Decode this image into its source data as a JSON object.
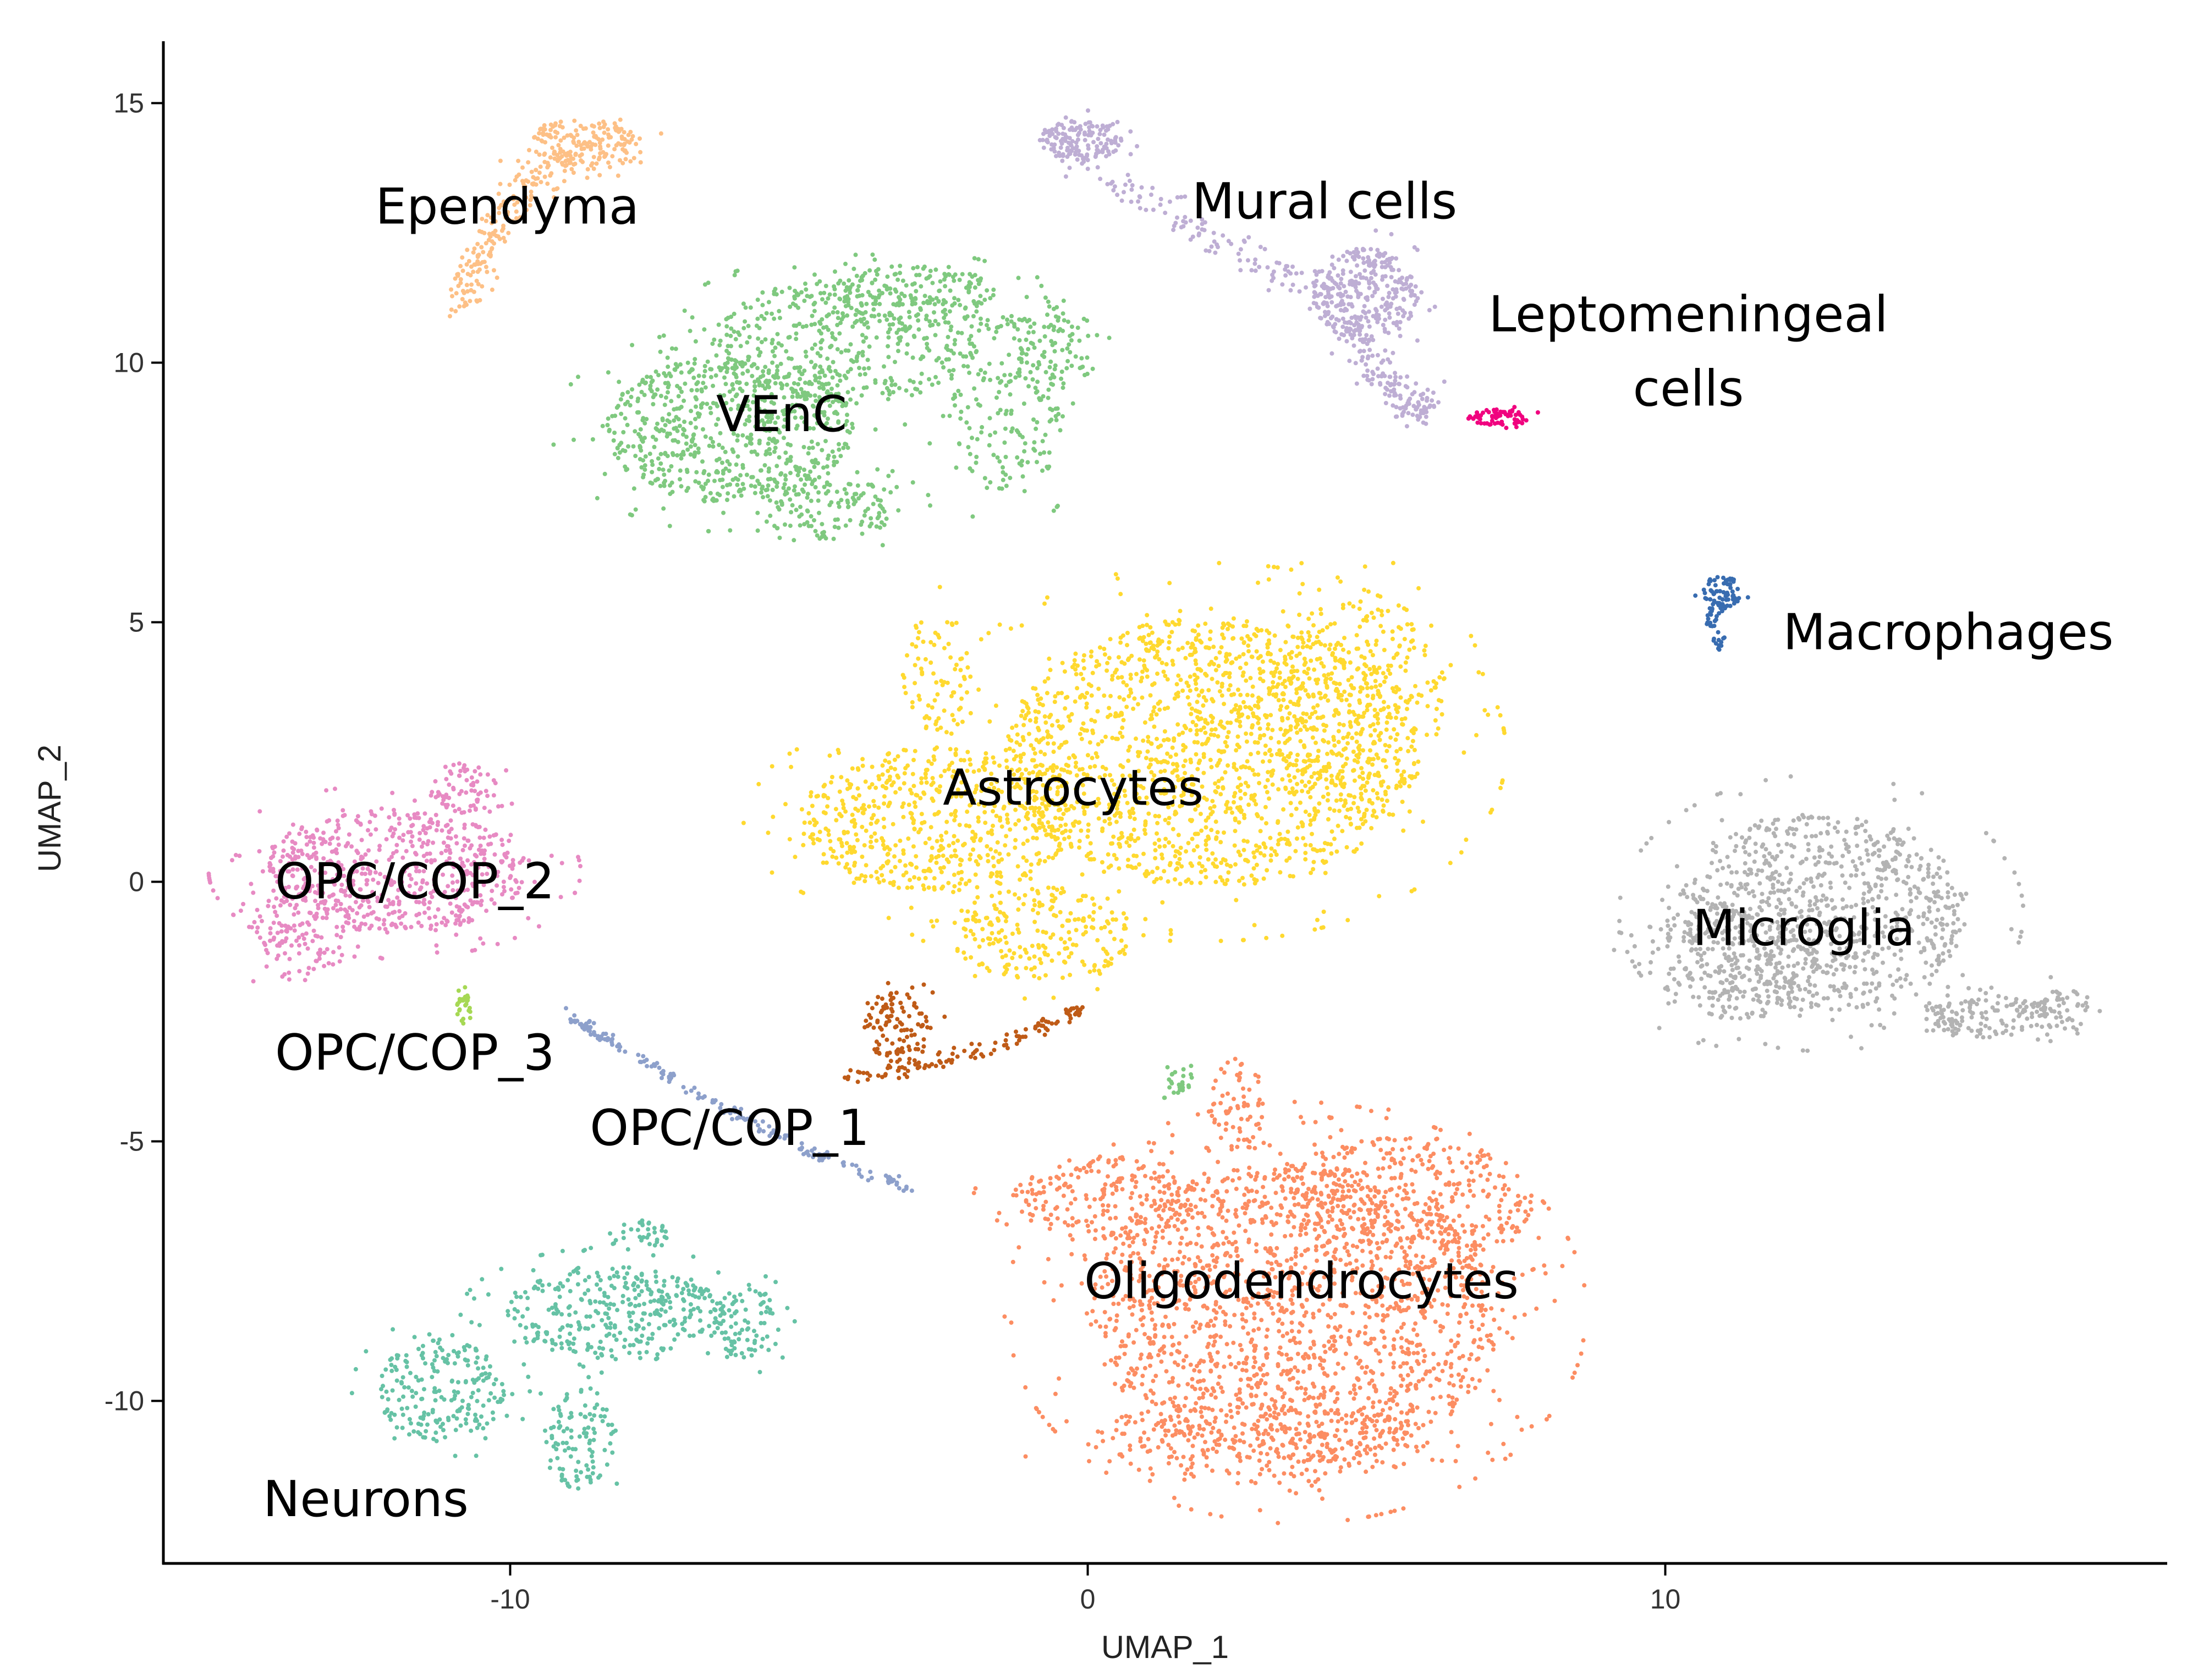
{
  "chart_data": {
    "type": "scatter",
    "title": "",
    "xlabel": "UMAP_1",
    "ylabel": "UMAP_2",
    "xlim": [
      -16.5,
      18.2
    ],
    "ylim": [
      -13.2,
      16.2
    ],
    "xticks": [
      -10,
      0,
      10
    ],
    "yticks": [
      -10,
      -5,
      0,
      5,
      10,
      15
    ],
    "grid": false,
    "legend": "none (labels on clusters)",
    "clusters": [
      {
        "name": "Ependyma",
        "color": "#FDC086",
        "label": [
          -10.05,
          13.0
        ],
        "curves": [
          [
            [
              -10.8,
              11.0
            ],
            [
              -10.6,
              12.6
            ],
            [
              -9.6,
              13.9
            ],
            [
              -8.1,
              14.4
            ]
          ]
        ],
        "width": 0.35,
        "n": 500,
        "blobs": [
          [
            -8.7,
            14.2,
            1.0,
            0.5,
            300
          ]
        ]
      },
      {
        "name": "VEnC",
        "color": "#7FC97F",
        "label": [
          -5.3,
          9.0
        ],
        "blobs": [
          [
            -6.2,
            8.7,
            2.2,
            1.4,
            1500
          ],
          [
            -4.2,
            10.4,
            2.3,
            1.2,
            1000
          ],
          [
            -3.0,
            11.3,
            1.4,
            0.6,
            400
          ],
          [
            -1.4,
            9.2,
            1.0,
            1.8,
            400
          ],
          [
            -0.6,
            10.3,
            0.7,
            1.0,
            200
          ],
          [
            -4.5,
            7.2,
            1.3,
            0.6,
            300
          ]
        ]
      },
      {
        "name": "Mural cells",
        "color": "#BEAED4",
        "label": [
          4.1,
          13.1
        ],
        "curves": [
          [
            [
              -0.8,
              14.3
            ],
            [
              1.0,
              13.2
            ],
            [
              2.8,
              12.0
            ],
            [
              4.2,
              11.3
            ]
          ],
          [
            [
              4.6,
              10.6
            ],
            [
              5.0,
              9.7
            ],
            [
              5.8,
              9.0
            ]
          ]
        ],
        "width": 0.35,
        "n": 600,
        "blobs": [
          [
            -0.1,
            14.3,
            0.7,
            0.4,
            300
          ],
          [
            4.8,
            11.3,
            0.9,
            0.9,
            700
          ]
        ]
      },
      {
        "name": "Leptomeningeal\ncells",
        "label_lines": [
          "Leptomeningeal",
          "cells"
        ],
        "color": "#F0027F",
        "label": [
          10.4,
          10.2
        ],
        "blobs": [
          [
            7.1,
            8.95,
            0.55,
            0.15,
            150
          ]
        ]
      },
      {
        "name": "Macrophages",
        "color": "#386CB0",
        "label": [
          14.9,
          4.8
        ],
        "blobs": [
          [
            11.0,
            5.6,
            0.35,
            0.3,
            150
          ],
          [
            10.9,
            4.9,
            0.2,
            0.5,
            80
          ]
        ]
      },
      {
        "name": "Astrocytes",
        "color": "#FFD92F",
        "label": [
          -0.25,
          1.8
        ],
        "blobs": [
          [
            2.2,
            2.5,
            3.6,
            2.6,
            3600
          ],
          [
            -2.6,
            1.2,
            2.4,
            1.4,
            1400
          ],
          [
            4.5,
            3.5,
            1.7,
            2.0,
            800
          ],
          [
            -0.8,
            -1.0,
            1.6,
            0.9,
            500
          ],
          [
            -2.6,
            4.0,
            0.6,
            1.2,
            150
          ]
        ]
      },
      {
        "name": "Microglia",
        "color": "#B3B3B3",
        "label": [
          12.4,
          -0.9
        ],
        "blobs": [
          [
            12.7,
            -0.6,
            2.5,
            1.9,
            1900
          ],
          [
            11.2,
            -1.5,
            1.5,
            1.2,
            600
          ],
          [
            15.6,
            -2.6,
            1.4,
            0.4,
            350
          ],
          [
            16.9,
            -2.5,
            0.5,
            0.5,
            100
          ]
        ]
      },
      {
        "name": "OPC/COP_2",
        "color": "#E78AC3",
        "label": [
          -11.65,
          0.0
        ],
        "blobs": [
          [
            -12.0,
            0.2,
            2.3,
            1.2,
            1400
          ],
          [
            -13.6,
            -1.0,
            0.8,
            1.0,
            300
          ],
          [
            -10.8,
            1.8,
            0.6,
            0.5,
            150
          ]
        ]
      },
      {
        "name": "OPC/COP_3",
        "color": "#A6D854",
        "label": [
          -11.65,
          -3.3
        ],
        "blobs": [
          [
            -10.8,
            -2.45,
            0.12,
            0.3,
            60
          ]
        ]
      },
      {
        "name": "OPC/COP_1",
        "color": "#8DA0CB",
        "label": [
          -6.2,
          -4.75
        ],
        "curves": [
          [
            [
              -9.0,
              -2.6
            ],
            [
              -7.0,
              -3.9
            ],
            [
              -5.0,
              -5.3
            ],
            [
              -3.0,
              -5.9
            ]
          ]
        ],
        "width": 0.12,
        "n": 400
      },
      {
        "name": "",
        "color": "#BF5B17",
        "label": null,
        "blobs": [
          [
            -3.3,
            -2.8,
            0.6,
            0.7,
            250
          ]
        ],
        "curves": [
          [
            [
              -4.2,
              -3.8
            ],
            [
              -2.4,
              -3.4
            ],
            [
              -1.2,
              -3.2
            ],
            [
              -0.1,
              -2.4
            ]
          ]
        ],
        "width": 0.15,
        "n": 250
      },
      {
        "name": "",
        "color": "#7FC97F",
        "label": null,
        "blobs": [
          [
            1.6,
            -3.9,
            0.25,
            0.3,
            60
          ]
        ]
      },
      {
        "name": "Oligodendrocytes",
        "color": "#FC8D62",
        "label": [
          3.7,
          -7.7
        ],
        "blobs": [
          [
            3.6,
            -8.3,
            3.6,
            2.9,
            3800
          ],
          [
            5.5,
            -6.2,
            2.2,
            1.3,
            900
          ],
          [
            0.4,
            -6.1,
            1.7,
            0.8,
            500
          ],
          [
            2.6,
            -4.3,
            0.5,
            0.9,
            150
          ],
          [
            3.0,
            -10.8,
            3.0,
            0.8,
            600
          ]
        ]
      },
      {
        "name": "Neurons",
        "color": "#66C2A5",
        "label": [
          -12.5,
          -11.9
        ],
        "blobs": [
          [
            -8.2,
            -8.3,
            1.9,
            0.9,
            800
          ],
          [
            -11.2,
            -9.8,
            1.1,
            1.0,
            500
          ],
          [
            -8.8,
            -10.7,
            0.6,
            1.0,
            250
          ],
          [
            -5.9,
            -8.5,
            0.6,
            0.7,
            200
          ],
          [
            -7.8,
            -6.8,
            0.6,
            0.3,
            80
          ]
        ]
      }
    ]
  }
}
